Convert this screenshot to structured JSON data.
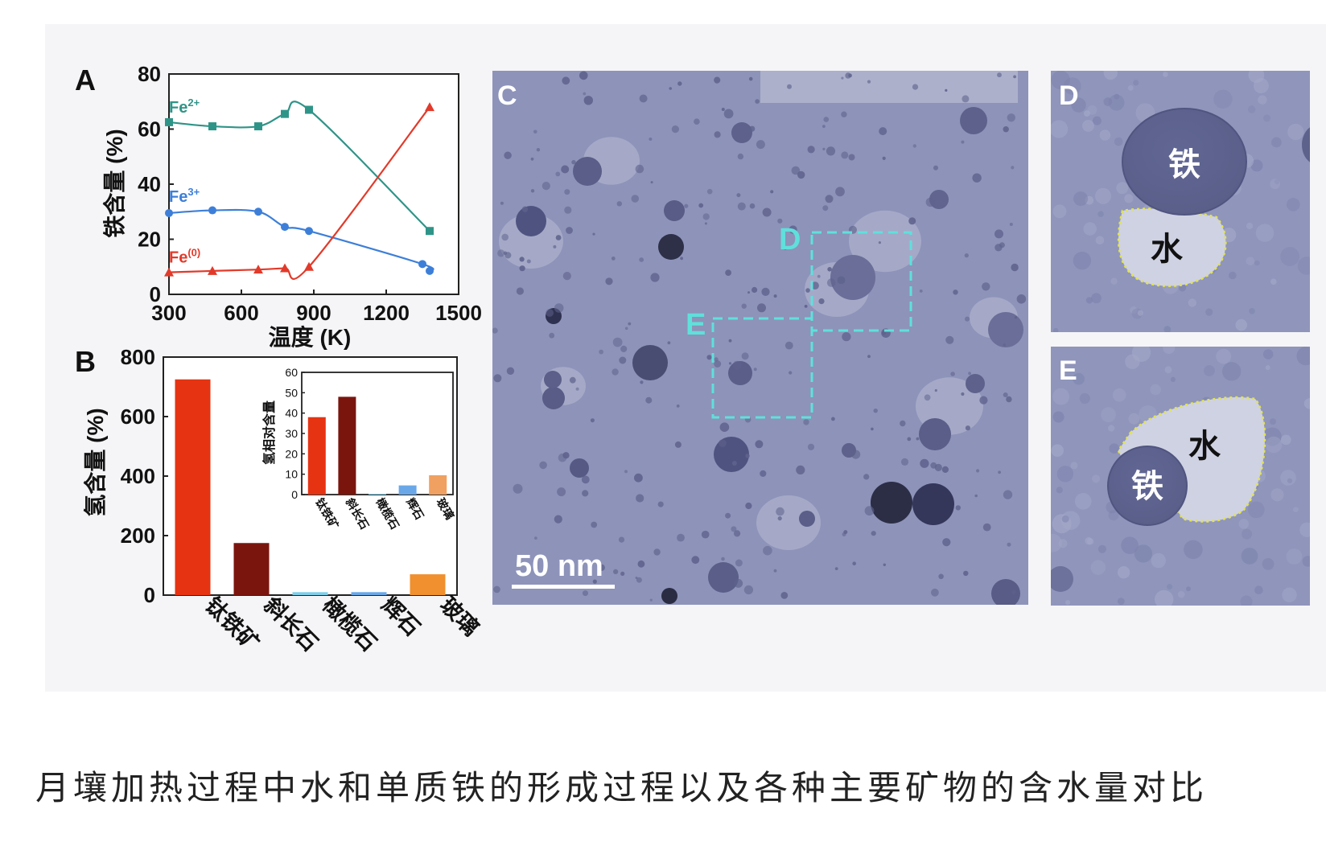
{
  "caption": "月壤加热过程中水和单质铁的形成过程以及各种主要矿物的含水量对比",
  "colors": {
    "panel_bg": "#f5f5f7",
    "fe2": "#2f9488",
    "fe3": "#3d7fd8",
    "fe0": "#e23a2a",
    "tem_bg": "#8c92b8",
    "tem_dark": "#2e3048",
    "box": "#5fe0dc"
  },
  "panels": {
    "A": {
      "letter": "A"
    },
    "B": {
      "letter": "B"
    },
    "C": {
      "letter": "C",
      "box_d": "D",
      "box_e": "E",
      "scale_label": "50 nm"
    },
    "D": {
      "letter": "D",
      "iron_label": "铁",
      "water_label": "水"
    },
    "E": {
      "letter": "E",
      "iron_label": "铁",
      "water_label": "水"
    }
  },
  "chart_data": [
    {
      "panel": "A",
      "type": "line",
      "xlabel": "温度 (K)",
      "ylabel": "铁含量 (%)",
      "xlim": [
        300,
        1500
      ],
      "ylim": [
        0,
        80
      ],
      "xticks": [
        "300",
        "600",
        "900",
        "1200",
        "1500"
      ],
      "yticks": [
        "0",
        "20",
        "40",
        "60",
        "80"
      ],
      "series": [
        {
          "name": "Fe",
          "sup": "2+",
          "color": "#2f9488",
          "marker": "square",
          "points": [
            [
              300,
              62.5
            ],
            [
              480,
              61
            ],
            [
              670,
              61
            ],
            [
              780,
              65.5
            ],
            [
              880,
              67
            ],
            [
              1380,
              23
            ]
          ]
        },
        {
          "name": "Fe",
          "sup": "3+",
          "color": "#3d7fd8",
          "marker": "circle",
          "points": [
            [
              300,
              29.5
            ],
            [
              480,
              30.5
            ],
            [
              670,
              30
            ],
            [
              780,
              24.5
            ],
            [
              880,
              23
            ],
            [
              1350,
              11
            ],
            [
              1380,
              8.5
            ]
          ]
        },
        {
          "name": "Fe",
          "sup": "(0)",
          "color": "#e23a2a",
          "marker": "triangle",
          "points": [
            [
              300,
              8
            ],
            [
              480,
              8.5
            ],
            [
              670,
              9
            ],
            [
              780,
              9.5
            ],
            [
              880,
              10
            ],
            [
              1380,
              68
            ]
          ]
        }
      ]
    },
    {
      "panel": "B",
      "type": "bar",
      "ylabel": "氢含量 (%)",
      "ylim": [
        0,
        800
      ],
      "yticks": [
        "0",
        "200",
        "400",
        "600",
        "800"
      ],
      "categories": [
        "钛铁矿",
        "斜长石",
        "橄榄石",
        "辉石",
        "玻璃"
      ],
      "colors": [
        "#e63312",
        "#7a150e",
        "#7fcfe8",
        "#6aa7e8",
        "#f0902e"
      ],
      "values": [
        725,
        175,
        10,
        10,
        70
      ]
    },
    {
      "panel": "B-inset",
      "type": "bar",
      "ylabel": "氢相对含量",
      "ylim": [
        0,
        60
      ],
      "yticks": [
        "0",
        "10",
        "20",
        "30",
        "40",
        "50",
        "60"
      ],
      "categories": [
        "钛铁矿",
        "斜长石",
        "橄榄石",
        "辉石",
        "玻璃"
      ],
      "colors": [
        "#e63312",
        "#7a150e",
        "#7fcfe8",
        "#6aa7e8",
        "#f0a060"
      ],
      "values": [
        38,
        48,
        0.4,
        4.5,
        9.5
      ]
    }
  ]
}
